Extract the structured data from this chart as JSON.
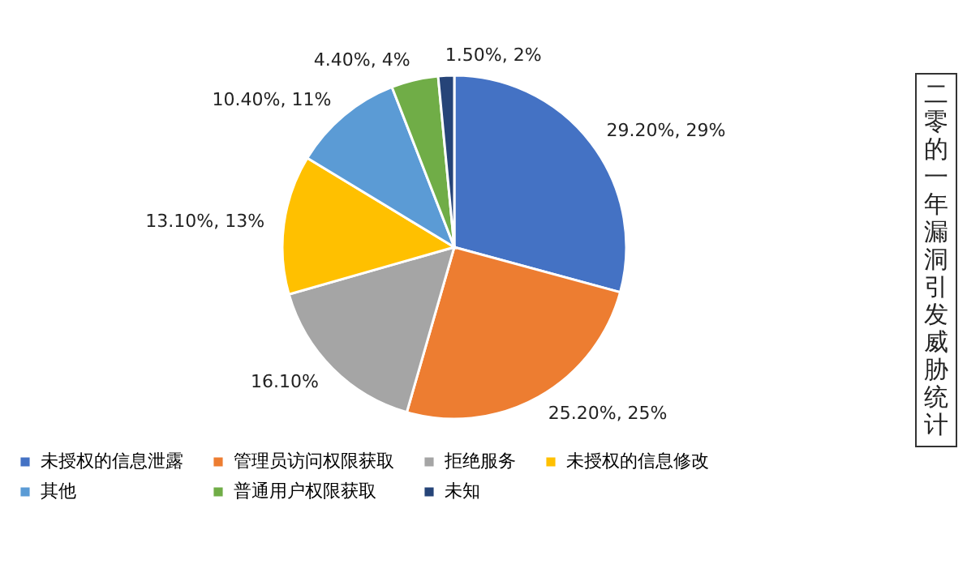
{
  "chart_data": {
    "type": "pie",
    "title": "二零的一年漏洞引发威胁统计",
    "categories": [
      "未授权的信息泄露",
      "管理员访问权限获取",
      "拒绝服务",
      "未授权的信息修改",
      "其他",
      "普通用户权限获取",
      "未知"
    ],
    "values": [
      29.2,
      25.2,
      16.1,
      13.1,
      10.4,
      4.4,
      1.5
    ],
    "colors": [
      "#4472c4",
      "#ed7d31",
      "#a5a5a5",
      "#ffc000",
      "#5b9bd5",
      "#70ad47",
      "#264478"
    ],
    "value_labels": [
      "29.20%, 29%",
      "25.20%, 25%",
      "16.10%",
      "13.10%, 13%",
      "10.40%, 11%",
      "4.40%, 4%",
      "1.50%, 2%"
    ],
    "legend": "bottom"
  }
}
